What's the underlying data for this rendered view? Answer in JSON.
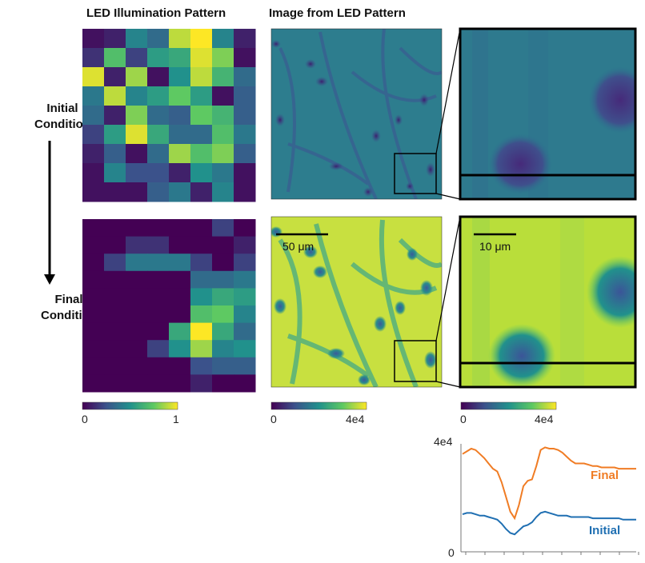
{
  "headers": {
    "led_pattern": "LED Illumination Pattern",
    "image": "Image from LED Pattern"
  },
  "rows": {
    "initial": [
      "Initial",
      "Condition"
    ],
    "final": [
      "Final",
      "Condition"
    ]
  },
  "colorbars": {
    "led": {
      "min": "0",
      "max": "1"
    },
    "image": {
      "min": "0",
      "max": "4e4"
    },
    "zoom": {
      "min": "0",
      "max": "4e4"
    }
  },
  "scalebars": {
    "image": "50 μm",
    "zoom": "10 μm"
  },
  "led_initial": [
    [
      0.05,
      0.1,
      0.45,
      0.35,
      0.9,
      1.0,
      0.45,
      0.1
    ],
    [
      0.15,
      0.7,
      0.2,
      0.55,
      0.6,
      0.95,
      0.8,
      0.05
    ],
    [
      0.95,
      0.1,
      0.85,
      0.05,
      0.5,
      0.9,
      0.65,
      0.35
    ],
    [
      0.4,
      0.9,
      0.45,
      0.55,
      0.75,
      0.55,
      0.05,
      0.3
    ],
    [
      0.35,
      0.1,
      0.8,
      0.35,
      0.3,
      0.75,
      0.65,
      0.3
    ],
    [
      0.2,
      0.55,
      0.95,
      0.6,
      0.35,
      0.35,
      0.7,
      0.4
    ],
    [
      0.1,
      0.3,
      0.05,
      0.35,
      0.85,
      0.7,
      0.8,
      0.3
    ],
    [
      0.05,
      0.45,
      0.25,
      0.25,
      0.1,
      0.5,
      0.4,
      0.05
    ],
    [
      0.05,
      0.05,
      0.05,
      0.3,
      0.4,
      0.1,
      0.45,
      0.05
    ]
  ],
  "led_final": [
    [
      0.0,
      0.0,
      0.0,
      0.0,
      0.0,
      0.0,
      0.2,
      0.0
    ],
    [
      0.0,
      0.0,
      0.15,
      0.15,
      0.0,
      0.0,
      0.0,
      0.1
    ],
    [
      0.0,
      0.2,
      0.4,
      0.4,
      0.4,
      0.2,
      0.0,
      0.2
    ],
    [
      0.0,
      0.0,
      0.0,
      0.0,
      0.0,
      0.35,
      0.35,
      0.4
    ],
    [
      0.0,
      0.0,
      0.0,
      0.0,
      0.0,
      0.5,
      0.6,
      0.55
    ],
    [
      0.0,
      0.0,
      0.0,
      0.0,
      0.0,
      0.7,
      0.75,
      0.45
    ],
    [
      0.0,
      0.0,
      0.0,
      0.0,
      0.6,
      1.0,
      0.6,
      0.35
    ],
    [
      0.0,
      0.0,
      0.0,
      0.2,
      0.5,
      0.85,
      0.45,
      0.5
    ],
    [
      0.0,
      0.0,
      0.0,
      0.0,
      0.0,
      0.25,
      0.3,
      0.3
    ],
    [
      0.0,
      0.0,
      0.0,
      0.0,
      0.0,
      0.1,
      0.0,
      0.0
    ]
  ],
  "chart_data": {
    "type": "line",
    "title": "",
    "xlabel": "",
    "ylabel": "",
    "ylim": [
      0,
      40000
    ],
    "ytick_labels": {
      "top": "4e4",
      "bottom": "0"
    },
    "x": [
      0,
      2,
      4,
      6,
      8,
      10,
      12,
      14,
      16,
      18,
      20,
      22,
      24,
      26,
      28,
      30,
      32,
      34,
      36,
      38,
      40,
      42,
      44,
      46,
      48,
      50,
      52,
      54,
      56,
      58,
      60,
      62,
      64,
      66,
      68,
      70,
      72,
      74,
      76,
      78,
      80
    ],
    "series": [
      {
        "name": "Final",
        "color": "#f07c24",
        "values": [
          36500,
          37500,
          38500,
          38000,
          36500,
          35000,
          33000,
          31000,
          30000,
          26000,
          20500,
          15000,
          12500,
          17500,
          24500,
          26500,
          27000,
          32000,
          38000,
          39000,
          38500,
          38500,
          38000,
          37000,
          35500,
          34000,
          33000,
          33000,
          33000,
          32500,
          32000,
          32000,
          31500,
          31500,
          31500,
          31500,
          31000,
          31000,
          31000,
          31000,
          31000
        ]
      },
      {
        "name": "Initial",
        "color": "#1f6fb2",
        "values": [
          14000,
          14500,
          14500,
          14000,
          13500,
          13500,
          13000,
          12500,
          12000,
          10500,
          8500,
          7000,
          6500,
          8000,
          9500,
          10000,
          11000,
          13000,
          14500,
          15000,
          14500,
          14000,
          13500,
          13500,
          13500,
          13000,
          13000,
          13000,
          13000,
          13000,
          12500,
          12500,
          12500,
          12500,
          12500,
          12500,
          12500,
          12000,
          12000,
          12000,
          12000
        ]
      }
    ]
  },
  "colors": {
    "viridis_low": "#440154",
    "viridis_mid": "#21918c",
    "viridis_high": "#fde725"
  }
}
